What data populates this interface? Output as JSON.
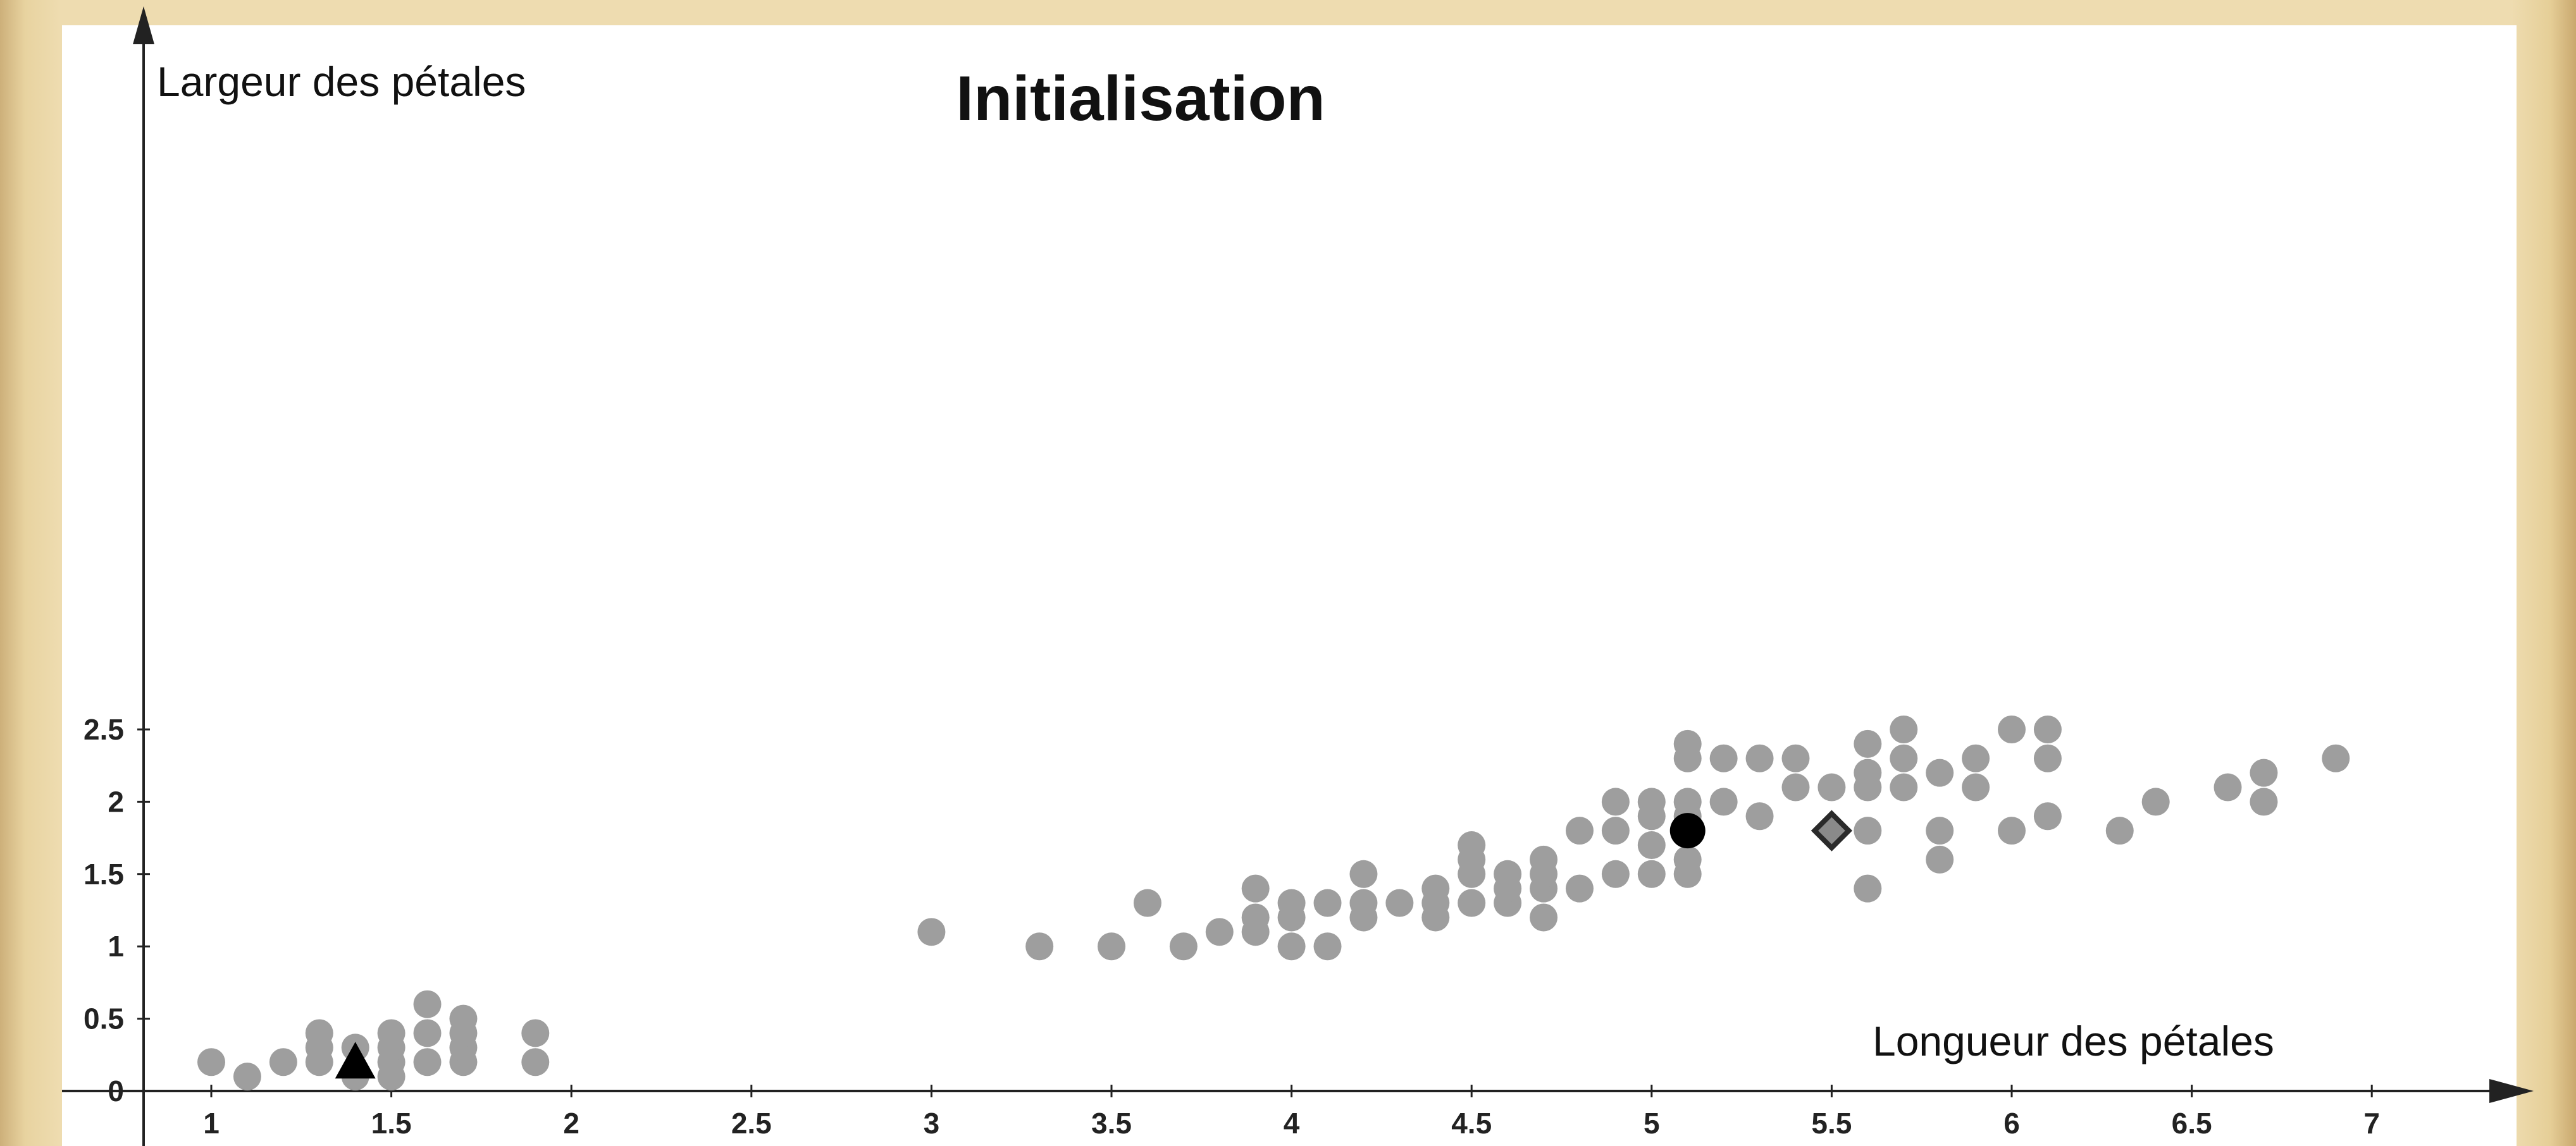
{
  "chart_data": {
    "type": "scatter",
    "title": "Initialisation",
    "xlabel": "Longueur des pétales",
    "ylabel": "Largeur des pétales",
    "xlim": [
      0.7,
      7.4
    ],
    "ylim": [
      0,
      2.75
    ],
    "x_ticks": [
      1,
      1.5,
      2,
      2.5,
      3,
      3.5,
      4,
      4.5,
      5,
      5.5,
      6,
      6.5,
      7
    ],
    "y_ticks": [
      0,
      0.5,
      1,
      1.5,
      2,
      2.5
    ],
    "x_tick_labels": [
      "1",
      "1.5",
      "2",
      "2.5",
      "3",
      "3.5",
      "4",
      "4.5",
      "5",
      "5.5",
      "6",
      "6.5",
      "7"
    ],
    "y_tick_labels": [
      "0",
      "0.5",
      "1",
      "1.5",
      "2",
      "2.5"
    ],
    "grid": false,
    "colors": {
      "points": "#9e9e9e",
      "centroid": "#000000",
      "diamond_fill": "#8a8a8a",
      "diamond_stroke": "#2a2a2a"
    },
    "series": [
      {
        "marker": "circle",
        "color": "#9e9e9e",
        "points": [
          [
            1.0,
            0.2
          ],
          [
            1.1,
            0.1
          ],
          [
            1.2,
            0.2
          ],
          [
            1.3,
            0.2
          ],
          [
            1.3,
            0.3
          ],
          [
            1.3,
            0.4
          ],
          [
            1.4,
            0.1
          ],
          [
            1.4,
            0.3
          ],
          [
            1.5,
            0.1
          ],
          [
            1.5,
            0.2
          ],
          [
            1.5,
            0.3
          ],
          [
            1.5,
            0.4
          ],
          [
            1.6,
            0.2
          ],
          [
            1.6,
            0.4
          ],
          [
            1.6,
            0.6
          ],
          [
            1.7,
            0.2
          ],
          [
            1.7,
            0.3
          ],
          [
            1.7,
            0.4
          ],
          [
            1.7,
            0.5
          ],
          [
            1.9,
            0.2
          ],
          [
            1.9,
            0.4
          ],
          [
            3.0,
            1.1
          ],
          [
            3.3,
            1.0
          ],
          [
            3.5,
            1.0
          ],
          [
            3.6,
            1.3
          ],
          [
            3.7,
            1.0
          ],
          [
            3.8,
            1.1
          ],
          [
            3.9,
            1.1
          ],
          [
            3.9,
            1.2
          ],
          [
            3.9,
            1.4
          ],
          [
            4.0,
            1.0
          ],
          [
            4.0,
            1.2
          ],
          [
            4.0,
            1.3
          ],
          [
            4.1,
            1.0
          ],
          [
            4.1,
            1.3
          ],
          [
            4.2,
            1.2
          ],
          [
            4.2,
            1.3
          ],
          [
            4.2,
            1.5
          ],
          [
            4.3,
            1.3
          ],
          [
            4.4,
            1.2
          ],
          [
            4.4,
            1.3
          ],
          [
            4.4,
            1.4
          ],
          [
            4.5,
            1.3
          ],
          [
            4.5,
            1.5
          ],
          [
            4.5,
            1.6
          ],
          [
            4.5,
            1.7
          ],
          [
            4.6,
            1.3
          ],
          [
            4.6,
            1.4
          ],
          [
            4.6,
            1.5
          ],
          [
            4.7,
            1.2
          ],
          [
            4.7,
            1.4
          ],
          [
            4.7,
            1.5
          ],
          [
            4.7,
            1.6
          ],
          [
            4.8,
            1.4
          ],
          [
            4.8,
            1.8
          ],
          [
            4.9,
            1.5
          ],
          [
            4.9,
            1.8
          ],
          [
            4.9,
            2.0
          ],
          [
            5.0,
            1.5
          ],
          [
            5.0,
            1.7
          ],
          [
            5.0,
            1.9
          ],
          [
            5.0,
            2.0
          ],
          [
            5.1,
            1.5
          ],
          [
            5.1,
            1.6
          ],
          [
            5.1,
            1.9
          ],
          [
            5.1,
            2.0
          ],
          [
            5.1,
            2.3
          ],
          [
            5.1,
            2.4
          ],
          [
            5.2,
            2.0
          ],
          [
            5.2,
            2.3
          ],
          [
            5.3,
            1.9
          ],
          [
            5.3,
            2.3
          ],
          [
            5.4,
            2.1
          ],
          [
            5.4,
            2.3
          ],
          [
            5.5,
            2.1
          ],
          [
            5.6,
            1.4
          ],
          [
            5.6,
            1.8
          ],
          [
            5.6,
            2.1
          ],
          [
            5.6,
            2.2
          ],
          [
            5.6,
            2.4
          ],
          [
            5.7,
            2.1
          ],
          [
            5.7,
            2.3
          ],
          [
            5.7,
            2.5
          ],
          [
            5.8,
            1.6
          ],
          [
            5.8,
            1.8
          ],
          [
            5.8,
            2.2
          ],
          [
            5.9,
            2.1
          ],
          [
            5.9,
            2.3
          ],
          [
            6.0,
            1.8
          ],
          [
            6.0,
            2.5
          ],
          [
            6.1,
            1.9
          ],
          [
            6.1,
            2.3
          ],
          [
            6.1,
            2.5
          ],
          [
            6.3,
            1.8
          ],
          [
            6.4,
            2.0
          ],
          [
            6.6,
            2.1
          ],
          [
            6.7,
            2.0
          ],
          [
            6.7,
            2.2
          ],
          [
            6.9,
            2.3
          ]
        ]
      }
    ],
    "centroids": [
      {
        "marker": "triangle",
        "x": 1.4,
        "y": 0.2,
        "color": "#000000"
      },
      {
        "marker": "circle",
        "x": 5.1,
        "y": 1.8,
        "color": "#000000"
      },
      {
        "marker": "diamond",
        "x": 5.5,
        "y": 1.8,
        "color": "#8a8a8a"
      }
    ]
  }
}
